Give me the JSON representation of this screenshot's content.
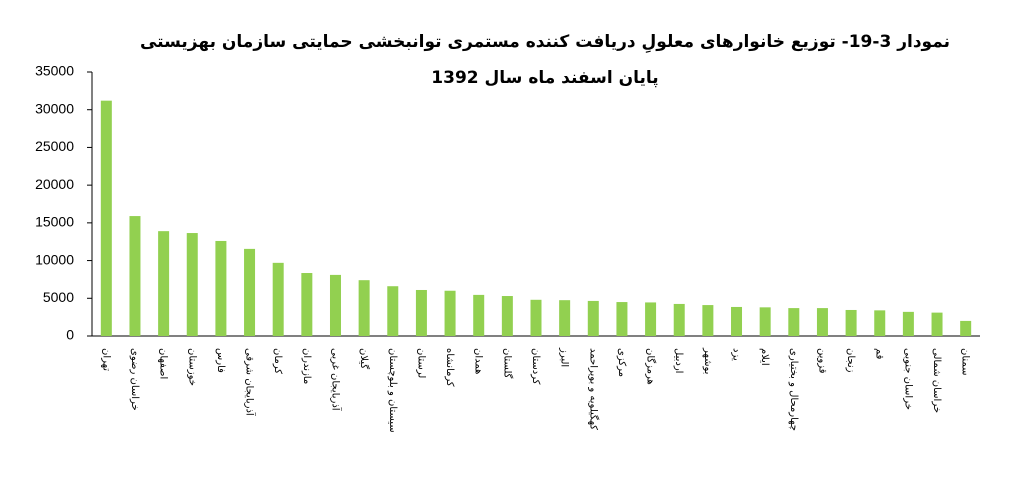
{
  "chart_data": {
    "type": "bar",
    "title": "نمودار 3-19- توزیع خانوارهای معلولِ دریافت کننده مستمری توانبخشی حمایتی سازمان بهزیستی",
    "subtitle": "پایان اسفند ماه سال 1392",
    "categories": [
      "تهران",
      "خراسان رضوی",
      "اصفهان",
      "خوزستان",
      "فارس",
      "آذربایجان شرقی",
      "کرمان",
      "مازندران",
      "آذربایجان غربی",
      "گیلان",
      "سیستان و بلوچستان",
      "لرستان",
      "کرمانشاه",
      "همدان",
      "گلستان",
      "کردستان",
      "البرز",
      "کهگیلویه و بویراحمد",
      "مرکزی",
      "هرمزگان",
      "اردبیل",
      "بوشهر",
      "یزد",
      "ایلام",
      "چهارمحال و بختیاری",
      "قزوین",
      "زنجان",
      "قم",
      "خراسان جنوبی",
      "خراسان شمالی",
      "سمنان"
    ],
    "values": [
      31200,
      15900,
      13900,
      13650,
      12600,
      11550,
      9700,
      8350,
      8100,
      7400,
      6600,
      6100,
      6000,
      5450,
      5300,
      4800,
      4750,
      4650,
      4500,
      4450,
      4250,
      4100,
      3850,
      3800,
      3700,
      3700,
      3450,
      3400,
      3200,
      3100,
      2000
    ],
    "color": "#92d050",
    "ylim": [
      0,
      35000
    ],
    "yticks": [
      0,
      5000,
      10000,
      15000,
      20000,
      25000,
      30000,
      35000
    ],
    "grid": false
  }
}
